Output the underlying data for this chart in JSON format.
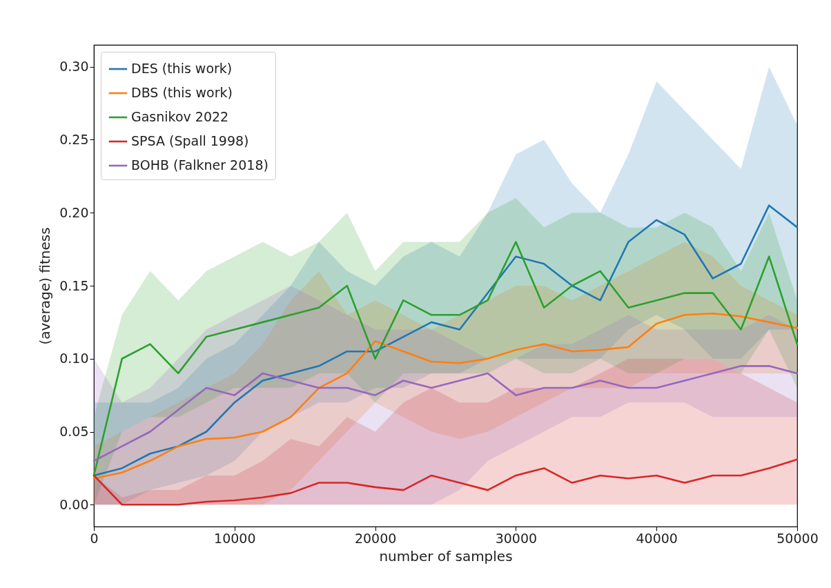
{
  "chart_data": {
    "type": "line",
    "xlabel": "number of samples",
    "ylabel": "(average) fitness",
    "x": [
      0,
      2000,
      4000,
      6000,
      8000,
      10000,
      12000,
      14000,
      16000,
      18000,
      20000,
      22000,
      24000,
      26000,
      28000,
      30000,
      32000,
      34000,
      36000,
      38000,
      40000,
      42000,
      44000,
      46000,
      48000,
      50000
    ],
    "xlim": [
      0,
      50000
    ],
    "xticks": [
      0,
      10000,
      20000,
      30000,
      40000,
      50000
    ],
    "ylim": [
      -0.015,
      0.315
    ],
    "yticks": [
      {
        "value": 0,
        "label": "0.00"
      },
      {
        "value": 0.05,
        "label": "0.05"
      },
      {
        "value": 0.1,
        "label": "0.10"
      },
      {
        "value": 0.15,
        "label": "0.15"
      },
      {
        "value": 0.2,
        "label": "0.20"
      },
      {
        "value": 0.25,
        "label": "0.25"
      },
      {
        "value": 0.3,
        "label": "0.30"
      }
    ],
    "legend": "top left",
    "line_style": "solid",
    "series": [
      {
        "name": "DES (this work)",
        "color": "#1f77b4",
        "values": [
          0.02,
          0.025,
          0.035,
          0.04,
          0.05,
          0.07,
          0.085,
          0.09,
          0.095,
          0.105,
          0.105,
          0.115,
          0.125,
          0.12,
          0.145,
          0.17,
          0.165,
          0.15,
          0.14,
          0.18,
          0.195,
          0.185,
          0.155,
          0.165,
          0.205,
          0.19
        ],
        "lower": [
          0,
          0,
          0.01,
          0.015,
          0.02,
          0.03,
          0.05,
          0.06,
          0.07,
          0.07,
          0.08,
          0.08,
          0.09,
          0.09,
          0.1,
          0.1,
          0.1,
          0.1,
          0.1,
          0.12,
          0.13,
          0.12,
          0.1,
          0.1,
          0.12,
          0.12
        ],
        "upper": [
          0.07,
          0.07,
          0.07,
          0.08,
          0.1,
          0.11,
          0.13,
          0.15,
          0.18,
          0.16,
          0.15,
          0.17,
          0.18,
          0.17,
          0.2,
          0.24,
          0.25,
          0.22,
          0.2,
          0.24,
          0.29,
          0.27,
          0.25,
          0.23,
          0.3,
          0.26
        ]
      },
      {
        "name": "DBS (this work)",
        "color": "#ff7f0e",
        "values": [
          0.018,
          0.022,
          0.03,
          0.04,
          0.045,
          0.046,
          0.05,
          0.06,
          0.08,
          0.09,
          0.112,
          0.105,
          0.098,
          0.097,
          0.1,
          0.106,
          0.11,
          0.105,
          0.106,
          0.108,
          0.124,
          0.13,
          0.131,
          0.129,
          0.125,
          0.121
        ],
        "lower": [
          0,
          0,
          0,
          0,
          0,
          0,
          0,
          0.01,
          0.03,
          0.05,
          0.07,
          0.06,
          0.05,
          0.045,
          0.05,
          0.06,
          0.07,
          0.08,
          0.08,
          0.08,
          0.09,
          0.09,
          0.09,
          0.09,
          0.09,
          0.09
        ],
        "upper": [
          0.04,
          0.05,
          0.06,
          0.07,
          0.08,
          0.09,
          0.11,
          0.14,
          0.16,
          0.13,
          0.14,
          0.13,
          0.12,
          0.13,
          0.14,
          0.15,
          0.15,
          0.14,
          0.15,
          0.16,
          0.17,
          0.18,
          0.17,
          0.15,
          0.14,
          0.13
        ]
      },
      {
        "name": "Gasnikov 2022",
        "color": "#2ca02c",
        "values": [
          0.02,
          0.1,
          0.11,
          0.09,
          0.115,
          0.12,
          0.125,
          0.13,
          0.135,
          0.15,
          0.1,
          0.14,
          0.13,
          0.13,
          0.14,
          0.18,
          0.135,
          0.15,
          0.16,
          0.135,
          0.14,
          0.145,
          0.145,
          0.12,
          0.17,
          0.11
        ],
        "lower": [
          0,
          0.05,
          0.06,
          0.06,
          0.07,
          0.08,
          0.08,
          0.08,
          0.09,
          0.09,
          0.07,
          0.09,
          0.09,
          0.09,
          0.09,
          0.1,
          0.09,
          0.09,
          0.1,
          0.09,
          0.09,
          0.1,
          0.1,
          0.09,
          0.12,
          0.08
        ],
        "upper": [
          0.06,
          0.13,
          0.16,
          0.14,
          0.16,
          0.17,
          0.18,
          0.17,
          0.18,
          0.2,
          0.16,
          0.18,
          0.18,
          0.18,
          0.2,
          0.21,
          0.19,
          0.2,
          0.2,
          0.19,
          0.19,
          0.2,
          0.19,
          0.16,
          0.2,
          0.14
        ]
      },
      {
        "name": "SPSA (Spall 1998)",
        "color": "#d62728",
        "values": [
          0.02,
          0,
          0,
          0,
          0.002,
          0.003,
          0.005,
          0.008,
          0.015,
          0.015,
          0.012,
          0.01,
          0.02,
          0.015,
          0.01,
          0.02,
          0.025,
          0.015,
          0.02,
          0.018,
          0.02,
          0.015,
          0.02,
          0.02,
          0.025,
          0.031
        ],
        "lower": [
          0,
          0,
          0,
          0,
          0,
          0,
          0,
          0,
          0,
          0,
          0,
          0,
          0,
          0,
          0,
          0,
          0,
          0,
          0,
          0,
          0,
          0,
          0,
          0,
          0,
          0
        ],
        "upper": [
          0.02,
          0.005,
          0.01,
          0.01,
          0.02,
          0.02,
          0.03,
          0.045,
          0.04,
          0.06,
          0.05,
          0.07,
          0.08,
          0.07,
          0.07,
          0.08,
          0.08,
          0.08,
          0.09,
          0.1,
          0.1,
          0.1,
          0.1,
          0.09,
          0.08,
          0.07
        ]
      },
      {
        "name": "BOHB (Falkner 2018)",
        "color": "#9467bd",
        "values": [
          0.03,
          0.04,
          0.05,
          0.065,
          0.08,
          0.075,
          0.09,
          0.085,
          0.08,
          0.08,
          0.075,
          0.085,
          0.08,
          0.085,
          0.09,
          0.075,
          0.08,
          0.08,
          0.085,
          0.08,
          0.08,
          0.085,
          0.09,
          0.095,
          0.095,
          0.09
        ],
        "lower": [
          0,
          0,
          0,
          0,
          0,
          0,
          0,
          0,
          0,
          0,
          0,
          0,
          0,
          0.01,
          0.03,
          0.04,
          0.05,
          0.06,
          0.06,
          0.07,
          0.07,
          0.07,
          0.06,
          0.06,
          0.06,
          0.06
        ],
        "upper": [
          0.1,
          0.07,
          0.08,
          0.1,
          0.12,
          0.13,
          0.14,
          0.15,
          0.14,
          0.13,
          0.12,
          0.12,
          0.12,
          0.11,
          0.1,
          0.1,
          0.11,
          0.11,
          0.12,
          0.13,
          0.12,
          0.12,
          0.12,
          0.12,
          0.13,
          0.12
        ]
      }
    ]
  }
}
